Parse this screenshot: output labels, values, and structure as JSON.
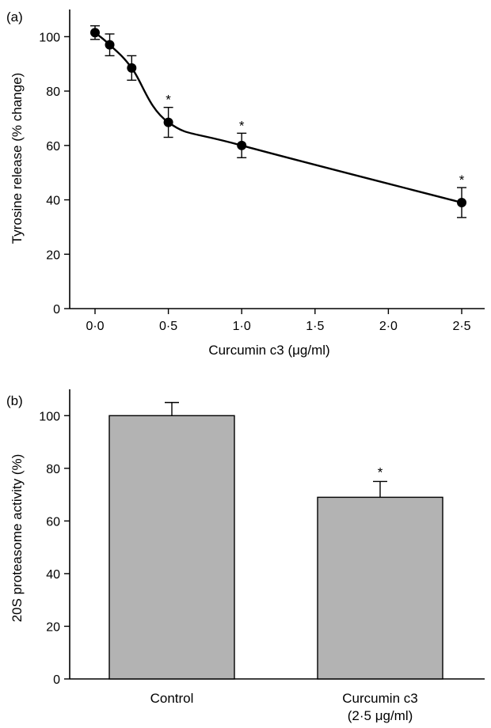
{
  "chart_data": [
    {
      "panel_label": "(a)",
      "type": "line",
      "x": [
        0.0,
        0.1,
        0.25,
        0.5,
        1.0,
        2.5
      ],
      "y": [
        101.5,
        97,
        88.5,
        68.5,
        60,
        39
      ],
      "error": [
        2.5,
        4,
        4.5,
        5.5,
        4.5,
        5.5
      ],
      "significant": [
        false,
        false,
        false,
        true,
        true,
        true
      ],
      "significance_marker": "*",
      "xlabel": "Curcumin c3 (μg/ml)",
      "ylabel": "Tyrosine release (% change)",
      "xlim": [
        -0.1,
        2.75
      ],
      "ylim": [
        0,
        110
      ],
      "xticks": [
        0,
        0.5,
        1.0,
        1.5,
        2.0,
        2.5
      ],
      "xtick_labels": [
        "0·0",
        "0·5",
        "1·0",
        "1·5",
        "2·0",
        "2·5"
      ],
      "yticks": [
        0,
        20,
        40,
        60,
        80,
        100
      ],
      "ytick_labels": [
        "0",
        "20",
        "40",
        "60",
        "80",
        "100"
      ],
      "series_color": "#000000",
      "grid": false
    },
    {
      "panel_label": "(b)",
      "type": "bar",
      "categories": [
        [
          "Control"
        ],
        [
          "Curcumin c3",
          "(2·5 μg/ml)"
        ]
      ],
      "values": [
        100,
        69
      ],
      "error": [
        5,
        6
      ],
      "significant": [
        false,
        true
      ],
      "significance_marker": "*",
      "ylabel": "20S proteasome activity (%)",
      "ylim": [
        0,
        110
      ],
      "yticks": [
        0,
        20,
        40,
        60,
        80,
        100
      ],
      "ytick_labels": [
        "0",
        "20",
        "40",
        "60",
        "80",
        "100"
      ],
      "bar_color": "#b3b3b3",
      "grid": false
    }
  ]
}
